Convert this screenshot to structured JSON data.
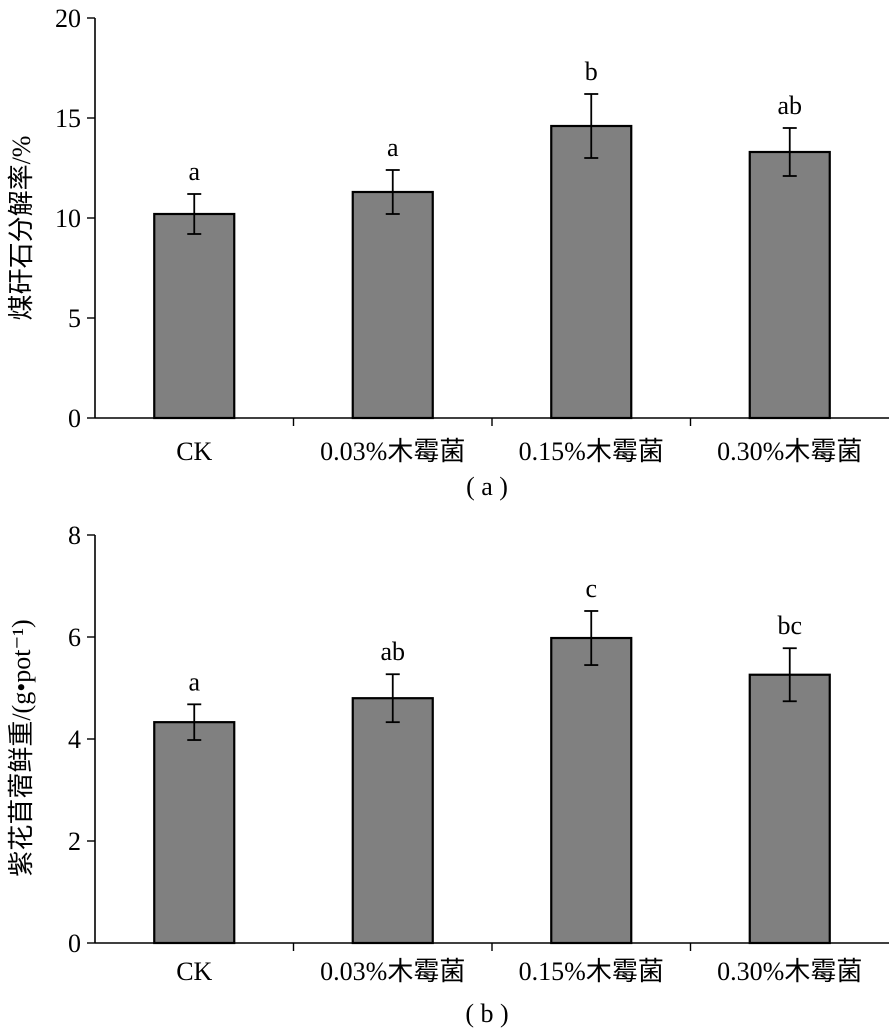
{
  "chart_data": [
    {
      "type": "bar",
      "panel": "a",
      "caption": "( a )",
      "ylabel": "煤矸石分解率/%",
      "xlabel": "",
      "categories": [
        "CK",
        "0.03%木霉菌",
        "0.15%木霉菌",
        "0.30%木霉菌"
      ],
      "values": [
        10.2,
        11.3,
        14.6,
        13.3
      ],
      "errors": [
        1.0,
        1.1,
        1.6,
        1.2
      ],
      "significance": [
        "a",
        "a",
        "b",
        "ab"
      ],
      "ylim": [
        0,
        20
      ],
      "yticks": [
        0,
        5,
        10,
        15,
        20
      ],
      "grid": false,
      "bar_color": "#808080"
    },
    {
      "type": "bar",
      "panel": "b",
      "caption": "( b )",
      "ylabel": "紫花苜蓿鲜重/(g•pot⁻¹)",
      "xlabel": "",
      "categories": [
        "CK",
        "0.03%木霉菌",
        "0.15%木霉菌",
        "0.30%木霉菌"
      ],
      "values": [
        4.33,
        4.8,
        5.98,
        5.26
      ],
      "errors": [
        0.35,
        0.47,
        0.53,
        0.52
      ],
      "significance": [
        "a",
        "ab",
        "c",
        "bc"
      ],
      "ylim": [
        0,
        8
      ],
      "yticks": [
        0,
        2,
        4,
        6,
        8
      ],
      "grid": false,
      "bar_color": "#808080"
    }
  ]
}
